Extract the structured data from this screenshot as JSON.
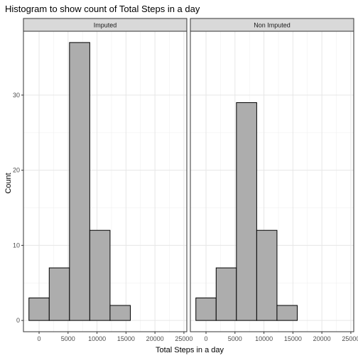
{
  "chart_data": {
    "type": "bar",
    "title": "Histogram to show count of Total Steps in a day",
    "xlabel": "Total Steps in a day",
    "ylabel": "Count",
    "xlim": [
      -2700,
      25500
    ],
    "ylim": [
      -1.5,
      38.5
    ],
    "x_ticks": [
      0,
      5000,
      10000,
      15000,
      20000,
      25000
    ],
    "y_ticks": [
      0,
      10,
      20,
      30
    ],
    "grid": true,
    "bar_fill": "#adadad",
    "bar_stroke": "#000000",
    "panels": [
      {
        "label": "Imputed",
        "bins": [
          {
            "x_start": -1750,
            "x_end": 1750,
            "count": 3
          },
          {
            "x_start": 1750,
            "x_end": 5250,
            "count": 7
          },
          {
            "x_start": 5250,
            "x_end": 8750,
            "count": 37
          },
          {
            "x_start": 8750,
            "x_end": 12250,
            "count": 12
          },
          {
            "x_start": 12250,
            "x_end": 15750,
            "count": 2
          }
        ]
      },
      {
        "label": "Non Imputed",
        "bins": [
          {
            "x_start": -1750,
            "x_end": 1750,
            "count": 3
          },
          {
            "x_start": 1750,
            "x_end": 5250,
            "count": 7
          },
          {
            "x_start": 5250,
            "x_end": 8750,
            "count": 29
          },
          {
            "x_start": 8750,
            "x_end": 12250,
            "count": 12
          },
          {
            "x_start": 12250,
            "x_end": 15750,
            "count": 2
          }
        ]
      }
    ]
  }
}
